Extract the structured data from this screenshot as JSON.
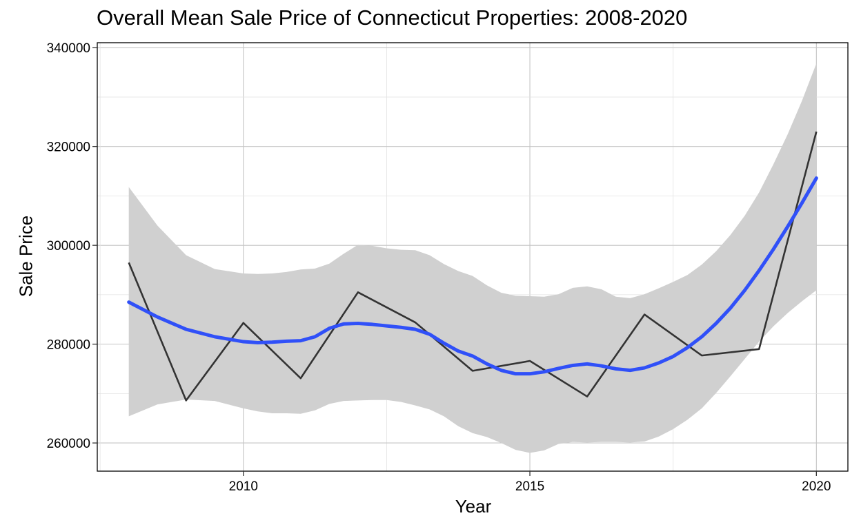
{
  "chart_data": {
    "type": "line",
    "title": "Overall Mean Sale Price of Connecticut Properties: 2008-2020",
    "xlabel": "Year",
    "ylabel": "Sale Price",
    "xlim": [
      2007.45,
      2020.55
    ],
    "ylim": [
      254300,
      341000
    ],
    "x_ticks": [
      2010,
      2015,
      2020
    ],
    "y_ticks": [
      260000,
      280000,
      300000,
      320000,
      340000
    ],
    "grid": true,
    "x": [
      2008,
      2009,
      2010,
      2011,
      2012,
      2013,
      2014,
      2015,
      2016,
      2017,
      2018,
      2019,
      2020
    ],
    "series": [
      {
        "values": [
          296500,
          268600,
          284300,
          273100,
          290500,
          284400,
          274600,
          276600,
          269400,
          286000,
          277700,
          279000,
          323000
        ],
        "color": "#333333"
      }
    ],
    "smooth": {
      "method": "loess",
      "color": "#3050F8",
      "band_color": "#D0D0D0",
      "x": [
        2008,
        2008.5,
        2009,
        2009.5,
        2010,
        2010.25,
        2010.5,
        2010.75,
        2011,
        2011.25,
        2011.5,
        2011.75,
        2012,
        2012.25,
        2012.5,
        2012.75,
        2013,
        2013.25,
        2013.5,
        2013.75,
        2014,
        2014.25,
        2014.5,
        2014.75,
        2015,
        2015.25,
        2015.5,
        2015.75,
        2016,
        2016.25,
        2016.5,
        2016.75,
        2017,
        2017.25,
        2017.5,
        2017.75,
        2018,
        2018.25,
        2018.5,
        2018.75,
        2019,
        2019.25,
        2019.5,
        2019.75,
        2020
      ],
      "fit": [
        288500,
        285500,
        283000,
        281500,
        280500,
        280300,
        280400,
        280600,
        280700,
        281500,
        283200,
        284100,
        284200,
        284000,
        283700,
        283400,
        283000,
        282000,
        280200,
        278600,
        277600,
        276000,
        274700,
        274000,
        274000,
        274400,
        275100,
        275700,
        276000,
        275600,
        275000,
        274700,
        275200,
        276200,
        277500,
        279300,
        281500,
        284200,
        287300,
        290900,
        294900,
        299200,
        303800,
        308600,
        313600
      ],
      "lower": [
        265400,
        267800,
        268800,
        268500,
        267000,
        266400,
        266000,
        266000,
        265900,
        266600,
        267900,
        268500,
        268600,
        268700,
        268700,
        268300,
        267600,
        266800,
        265400,
        263400,
        262000,
        261200,
        260000,
        258600,
        258000,
        258500,
        259800,
        260200,
        260100,
        260200,
        260200,
        260100,
        260300,
        261300,
        262800,
        264700,
        267000,
        270100,
        273500,
        277000,
        280500,
        283600,
        286300,
        288700,
        290900
      ],
      "upper": [
        311800,
        304000,
        298000,
        295200,
        294300,
        294200,
        294300,
        294600,
        295100,
        295300,
        296300,
        298300,
        300100,
        299900,
        299400,
        299100,
        299000,
        298000,
        296200,
        294800,
        293800,
        291900,
        290400,
        289800,
        289700,
        289600,
        290100,
        291400,
        291700,
        291100,
        289600,
        289300,
        290100,
        291300,
        292600,
        294000,
        296100,
        298800,
        302100,
        306000,
        310700,
        316400,
        322500,
        329300,
        336800
      ]
    }
  }
}
